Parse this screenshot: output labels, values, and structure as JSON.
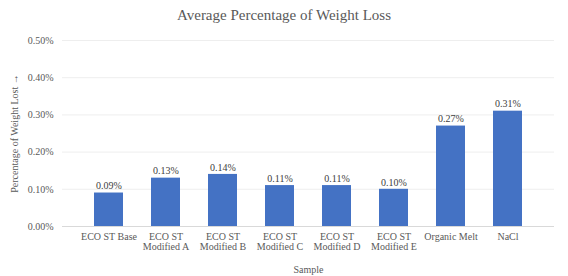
{
  "chart_data": {
    "type": "bar",
    "title": "Average Percentage of Weight Loss",
    "x_label": "Sample",
    "y_label": "Percentage of Weight Lost",
    "categories": [
      "ECO ST Base",
      "ECO ST Modified A",
      "ECO ST Modified B",
      "ECO ST Modified C",
      "ECO ST Modified D",
      "ECO ST Modified E",
      "Organic Melt",
      "NaCl"
    ],
    "values": [
      0.09,
      0.13,
      0.14,
      0.11,
      0.11,
      0.1,
      0.27,
      0.31
    ],
    "value_labels": [
      "0.09%",
      "0.13%",
      "0.14%",
      "0.11%",
      "0.11%",
      "0.10%",
      "0.27%",
      "0.31%"
    ],
    "color": "#4472c4",
    "ylim": [
      0,
      0.5
    ],
    "yticks": [
      {
        "value": 0,
        "label": "0.00%"
      },
      {
        "value": 0.1,
        "label": "0.10%"
      },
      {
        "value": 0.2,
        "label": "0.20%"
      },
      {
        "value": 0.3,
        "label": "0.30%"
      },
      {
        "value": 0.4,
        "label": "0.40%"
      },
      {
        "value": 0.5,
        "label": "0.50%"
      }
    ],
    "grid": true,
    "data_labels": true
  }
}
